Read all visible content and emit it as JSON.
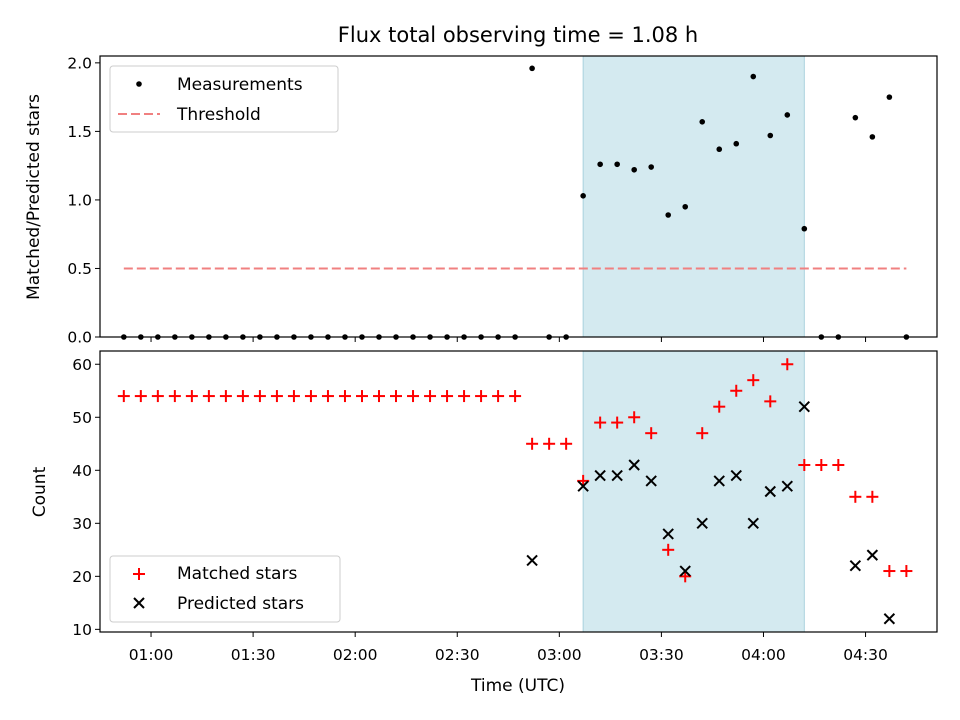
{
  "chart_data": [
    {
      "type": "scatter",
      "title": "Flux total observing time = 1.08 h",
      "xlabel": "",
      "ylabel": "Matched/Predicted stars",
      "ylim": [
        0,
        2.05
      ],
      "y_ticks": [
        "0.0",
        "0.5",
        "1.0",
        "1.5",
        "2.0"
      ],
      "grid": false,
      "legend_position": "top-left",
      "shaded_span": {
        "start": "03:07",
        "end": "04:12",
        "color": "#d4eaf0"
      },
      "series": [
        {
          "name": "Measurements",
          "color": "#000000",
          "marker": "dot",
          "points": [
            [
              "00:52",
              0
            ],
            [
              "00:57",
              0
            ],
            [
              "01:02",
              0
            ],
            [
              "01:07",
              0
            ],
            [
              "01:12",
              0
            ],
            [
              "01:17",
              0
            ],
            [
              "01:22",
              0
            ],
            [
              "01:27",
              0
            ],
            [
              "01:32",
              0
            ],
            [
              "01:37",
              0
            ],
            [
              "01:42",
              0
            ],
            [
              "01:47",
              0
            ],
            [
              "01:52",
              0
            ],
            [
              "01:57",
              0
            ],
            [
              "02:02",
              0
            ],
            [
              "02:07",
              0
            ],
            [
              "02:12",
              0
            ],
            [
              "02:17",
              0
            ],
            [
              "02:22",
              0
            ],
            [
              "02:27",
              0
            ],
            [
              "02:32",
              0
            ],
            [
              "02:37",
              0
            ],
            [
              "02:42",
              0
            ],
            [
              "02:47",
              0
            ],
            [
              "02:52",
              1.96
            ],
            [
              "02:57",
              0
            ],
            [
              "03:02",
              0
            ],
            [
              "03:07",
              1.03
            ],
            [
              "03:12",
              1.26
            ],
            [
              "03:17",
              1.26
            ],
            [
              "03:22",
              1.22
            ],
            [
              "03:27",
              1.24
            ],
            [
              "03:32",
              0.89
            ],
            [
              "03:37",
              0.95
            ],
            [
              "03:42",
              1.57
            ],
            [
              "03:47",
              1.37
            ],
            [
              "03:52",
              1.41
            ],
            [
              "03:57",
              1.9
            ],
            [
              "04:02",
              1.47
            ],
            [
              "04:07",
              1.62
            ],
            [
              "04:12",
              0.79
            ],
            [
              "04:17",
              0
            ],
            [
              "04:22",
              0
            ],
            [
              "04:27",
              1.6
            ],
            [
              "04:32",
              1.46
            ],
            [
              "04:37",
              1.75
            ],
            [
              "04:42",
              0
            ]
          ]
        },
        {
          "name": "Threshold",
          "color": "#f08080",
          "marker": "dashed-line",
          "points": [
            [
              "00:52",
              0.5
            ],
            [
              "04:42",
              0.5
            ]
          ]
        }
      ]
    },
    {
      "type": "scatter",
      "title": "",
      "xlabel": "Time (UTC)",
      "ylabel": "Count",
      "ylim": [
        9.5,
        62.5
      ],
      "y_ticks": [
        "10",
        "20",
        "30",
        "40",
        "50",
        "60"
      ],
      "x_ticks": [
        "01:00",
        "01:30",
        "02:00",
        "02:30",
        "03:00",
        "03:30",
        "04:00",
        "04:30"
      ],
      "grid": false,
      "legend_position": "bottom-left",
      "shaded_span": {
        "start": "03:07",
        "end": "04:12",
        "color": "#d4eaf0"
      },
      "series": [
        {
          "name": "Matched stars",
          "color": "#ff0000",
          "marker": "plus",
          "points": [
            [
              "00:52",
              54
            ],
            [
              "00:57",
              54
            ],
            [
              "01:02",
              54
            ],
            [
              "01:07",
              54
            ],
            [
              "01:12",
              54
            ],
            [
              "01:17",
              54
            ],
            [
              "01:22",
              54
            ],
            [
              "01:27",
              54
            ],
            [
              "01:32",
              54
            ],
            [
              "01:37",
              54
            ],
            [
              "01:42",
              54
            ],
            [
              "01:47",
              54
            ],
            [
              "01:52",
              54
            ],
            [
              "01:57",
              54
            ],
            [
              "02:02",
              54
            ],
            [
              "02:07",
              54
            ],
            [
              "02:12",
              54
            ],
            [
              "02:17",
              54
            ],
            [
              "02:22",
              54
            ],
            [
              "02:27",
              54
            ],
            [
              "02:32",
              54
            ],
            [
              "02:37",
              54
            ],
            [
              "02:42",
              54
            ],
            [
              "02:47",
              54
            ],
            [
              "02:52",
              45
            ],
            [
              "02:57",
              45
            ],
            [
              "03:02",
              45
            ],
            [
              "03:07",
              38
            ],
            [
              "03:12",
              49
            ],
            [
              "03:17",
              49
            ],
            [
              "03:22",
              50
            ],
            [
              "03:27",
              47
            ],
            [
              "03:32",
              25
            ],
            [
              "03:37",
              20
            ],
            [
              "03:42",
              47
            ],
            [
              "03:47",
              52
            ],
            [
              "03:52",
              55
            ],
            [
              "03:57",
              57
            ],
            [
              "04:02",
              53
            ],
            [
              "04:07",
              60
            ],
            [
              "04:12",
              41
            ],
            [
              "04:17",
              41
            ],
            [
              "04:22",
              41
            ],
            [
              "04:27",
              35
            ],
            [
              "04:32",
              35
            ],
            [
              "04:37",
              21
            ],
            [
              "04:42",
              21
            ]
          ]
        },
        {
          "name": "Predicted stars",
          "color": "#000000",
          "marker": "x",
          "points": [
            [
              "02:52",
              23
            ],
            [
              "03:07",
              37
            ],
            [
              "03:12",
              39
            ],
            [
              "03:17",
              39
            ],
            [
              "03:22",
              41
            ],
            [
              "03:27",
              38
            ],
            [
              "03:32",
              28
            ],
            [
              "03:37",
              21
            ],
            [
              "03:42",
              30
            ],
            [
              "03:47",
              38
            ],
            [
              "03:52",
              39
            ],
            [
              "03:57",
              30
            ],
            [
              "04:02",
              36
            ],
            [
              "04:07",
              37
            ],
            [
              "04:12",
              52
            ],
            [
              "04:27",
              22
            ],
            [
              "04:32",
              24
            ],
            [
              "04:37",
              12
            ]
          ]
        }
      ]
    }
  ]
}
